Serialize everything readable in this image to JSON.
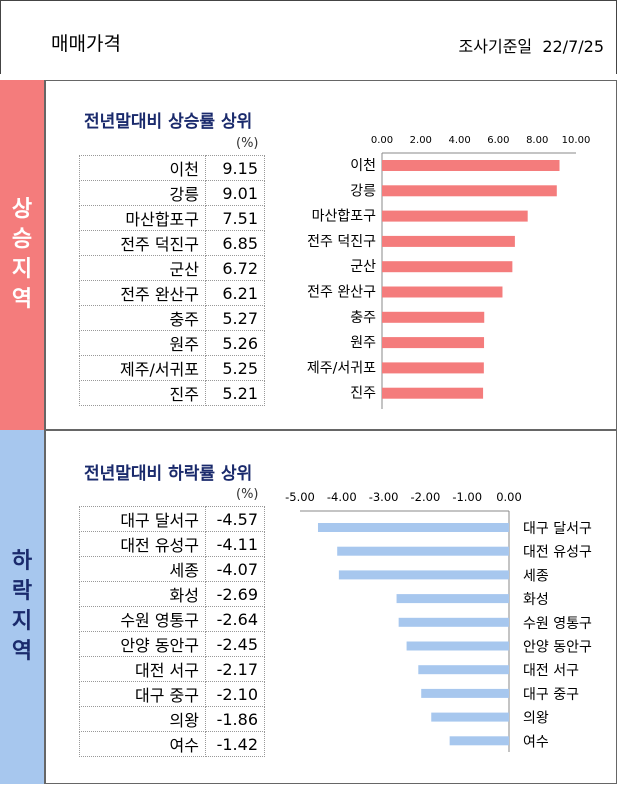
{
  "header": {
    "title": "매매가격",
    "survey_label": "조사기준일",
    "date": "22/7/25"
  },
  "rise": {
    "side_label": "상승지역",
    "title": "전년말대비 상승률 상위",
    "unit": "(%)",
    "color": "#f47c7c",
    "bar_color": "#f47c7c"
  },
  "fall": {
    "side_label": "하락지역",
    "title": "전년말대비 하락률 상위",
    "unit": "(%)",
    "color": "#a7c7ee",
    "bar_color": "#a7c7ee"
  },
  "chart_data": [
    {
      "type": "bar",
      "orientation": "horizontal",
      "categories": [
        "이천",
        "강릉",
        "마산합포구",
        "전주 덕진구",
        "군산",
        "전주 완산구",
        "충주",
        "원주",
        "제주/서귀포",
        "진주"
      ],
      "values": [
        9.15,
        9.01,
        7.51,
        6.85,
        6.72,
        6.21,
        5.27,
        5.26,
        5.25,
        5.21
      ],
      "value_labels": [
        "9.15",
        "9.01",
        "7.51",
        "6.85",
        "6.72",
        "6.21",
        "5.27",
        "5.26",
        "5.25",
        "5.21"
      ],
      "xlim": [
        0,
        10
      ],
      "xticks": [
        "0.00",
        "2.00",
        "4.00",
        "6.00",
        "8.00",
        "10.00"
      ],
      "axis_position": "top",
      "grid": false
    },
    {
      "type": "bar",
      "orientation": "horizontal",
      "categories": [
        "대구 달서구",
        "대전 유성구",
        "세종",
        "화성",
        "수원 영통구",
        "안양 동안구",
        "대전 서구",
        "대구 중구",
        "의왕",
        "여수"
      ],
      "values": [
        -4.57,
        -4.11,
        -4.07,
        -2.69,
        -2.64,
        -2.45,
        -2.17,
        -2.1,
        -1.86,
        -1.42
      ],
      "value_labels": [
        "-4.57",
        "-4.11",
        "-4.07",
        "-2.69",
        "-2.64",
        "-2.45",
        "-2.17",
        "-2.10",
        "-1.86",
        "-1.42"
      ],
      "xlim": [
        -5,
        0
      ],
      "xticks": [
        "-5.00",
        "-4.00",
        "-3.00",
        "-2.00",
        "-1.00",
        "0.00"
      ],
      "axis_position": "top",
      "grid": false
    }
  ]
}
